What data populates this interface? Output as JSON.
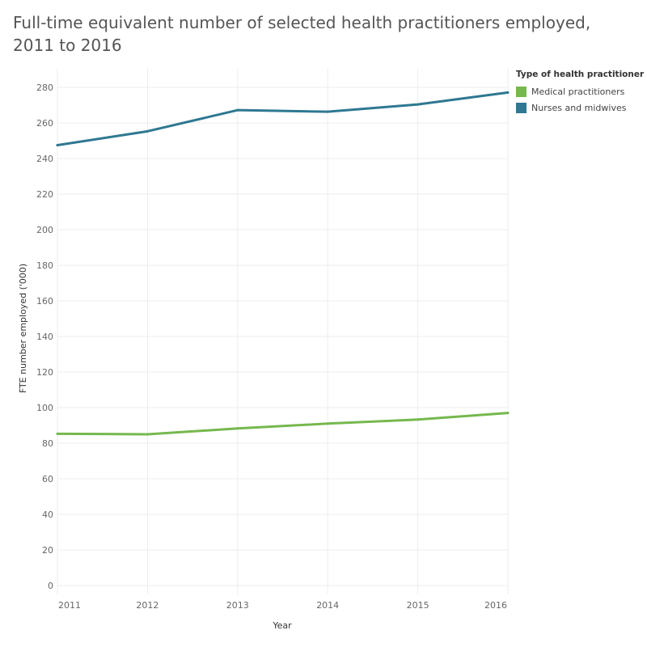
{
  "title": "Full-time equivalent number of selected health practitioners employed, 2011 to 2016",
  "legend": {
    "title": "Type of health practitioner",
    "items": [
      {
        "label": "Medical practitioners",
        "color": "#76b84e"
      },
      {
        "label": "Nurses and midwives",
        "color": "#2e7891"
      }
    ]
  },
  "chart_data": {
    "type": "line",
    "title": "Full-time equivalent number of selected health practitioners employed, 2011 to 2016",
    "xlabel": "Year",
    "ylabel": "FTE number employed ('000)",
    "x": [
      "2011",
      "2012",
      "2013",
      "2014",
      "2015",
      "2016"
    ],
    "ylim": [
      0,
      280
    ],
    "yticks": [
      0,
      20,
      40,
      60,
      80,
      100,
      120,
      140,
      160,
      180,
      200,
      220,
      240,
      260,
      280
    ],
    "grid": true,
    "legend_position": "top-right",
    "series": [
      {
        "name": "Medical practitioners",
        "color": "#76b84e",
        "values": [
          85.3,
          85.0,
          88.3,
          91.0,
          93.3,
          97.0
        ]
      },
      {
        "name": "Nurses and midwives",
        "color": "#2e7891",
        "values": [
          247.5,
          255.3,
          267.2,
          266.3,
          270.4,
          277.1
        ]
      }
    ]
  }
}
